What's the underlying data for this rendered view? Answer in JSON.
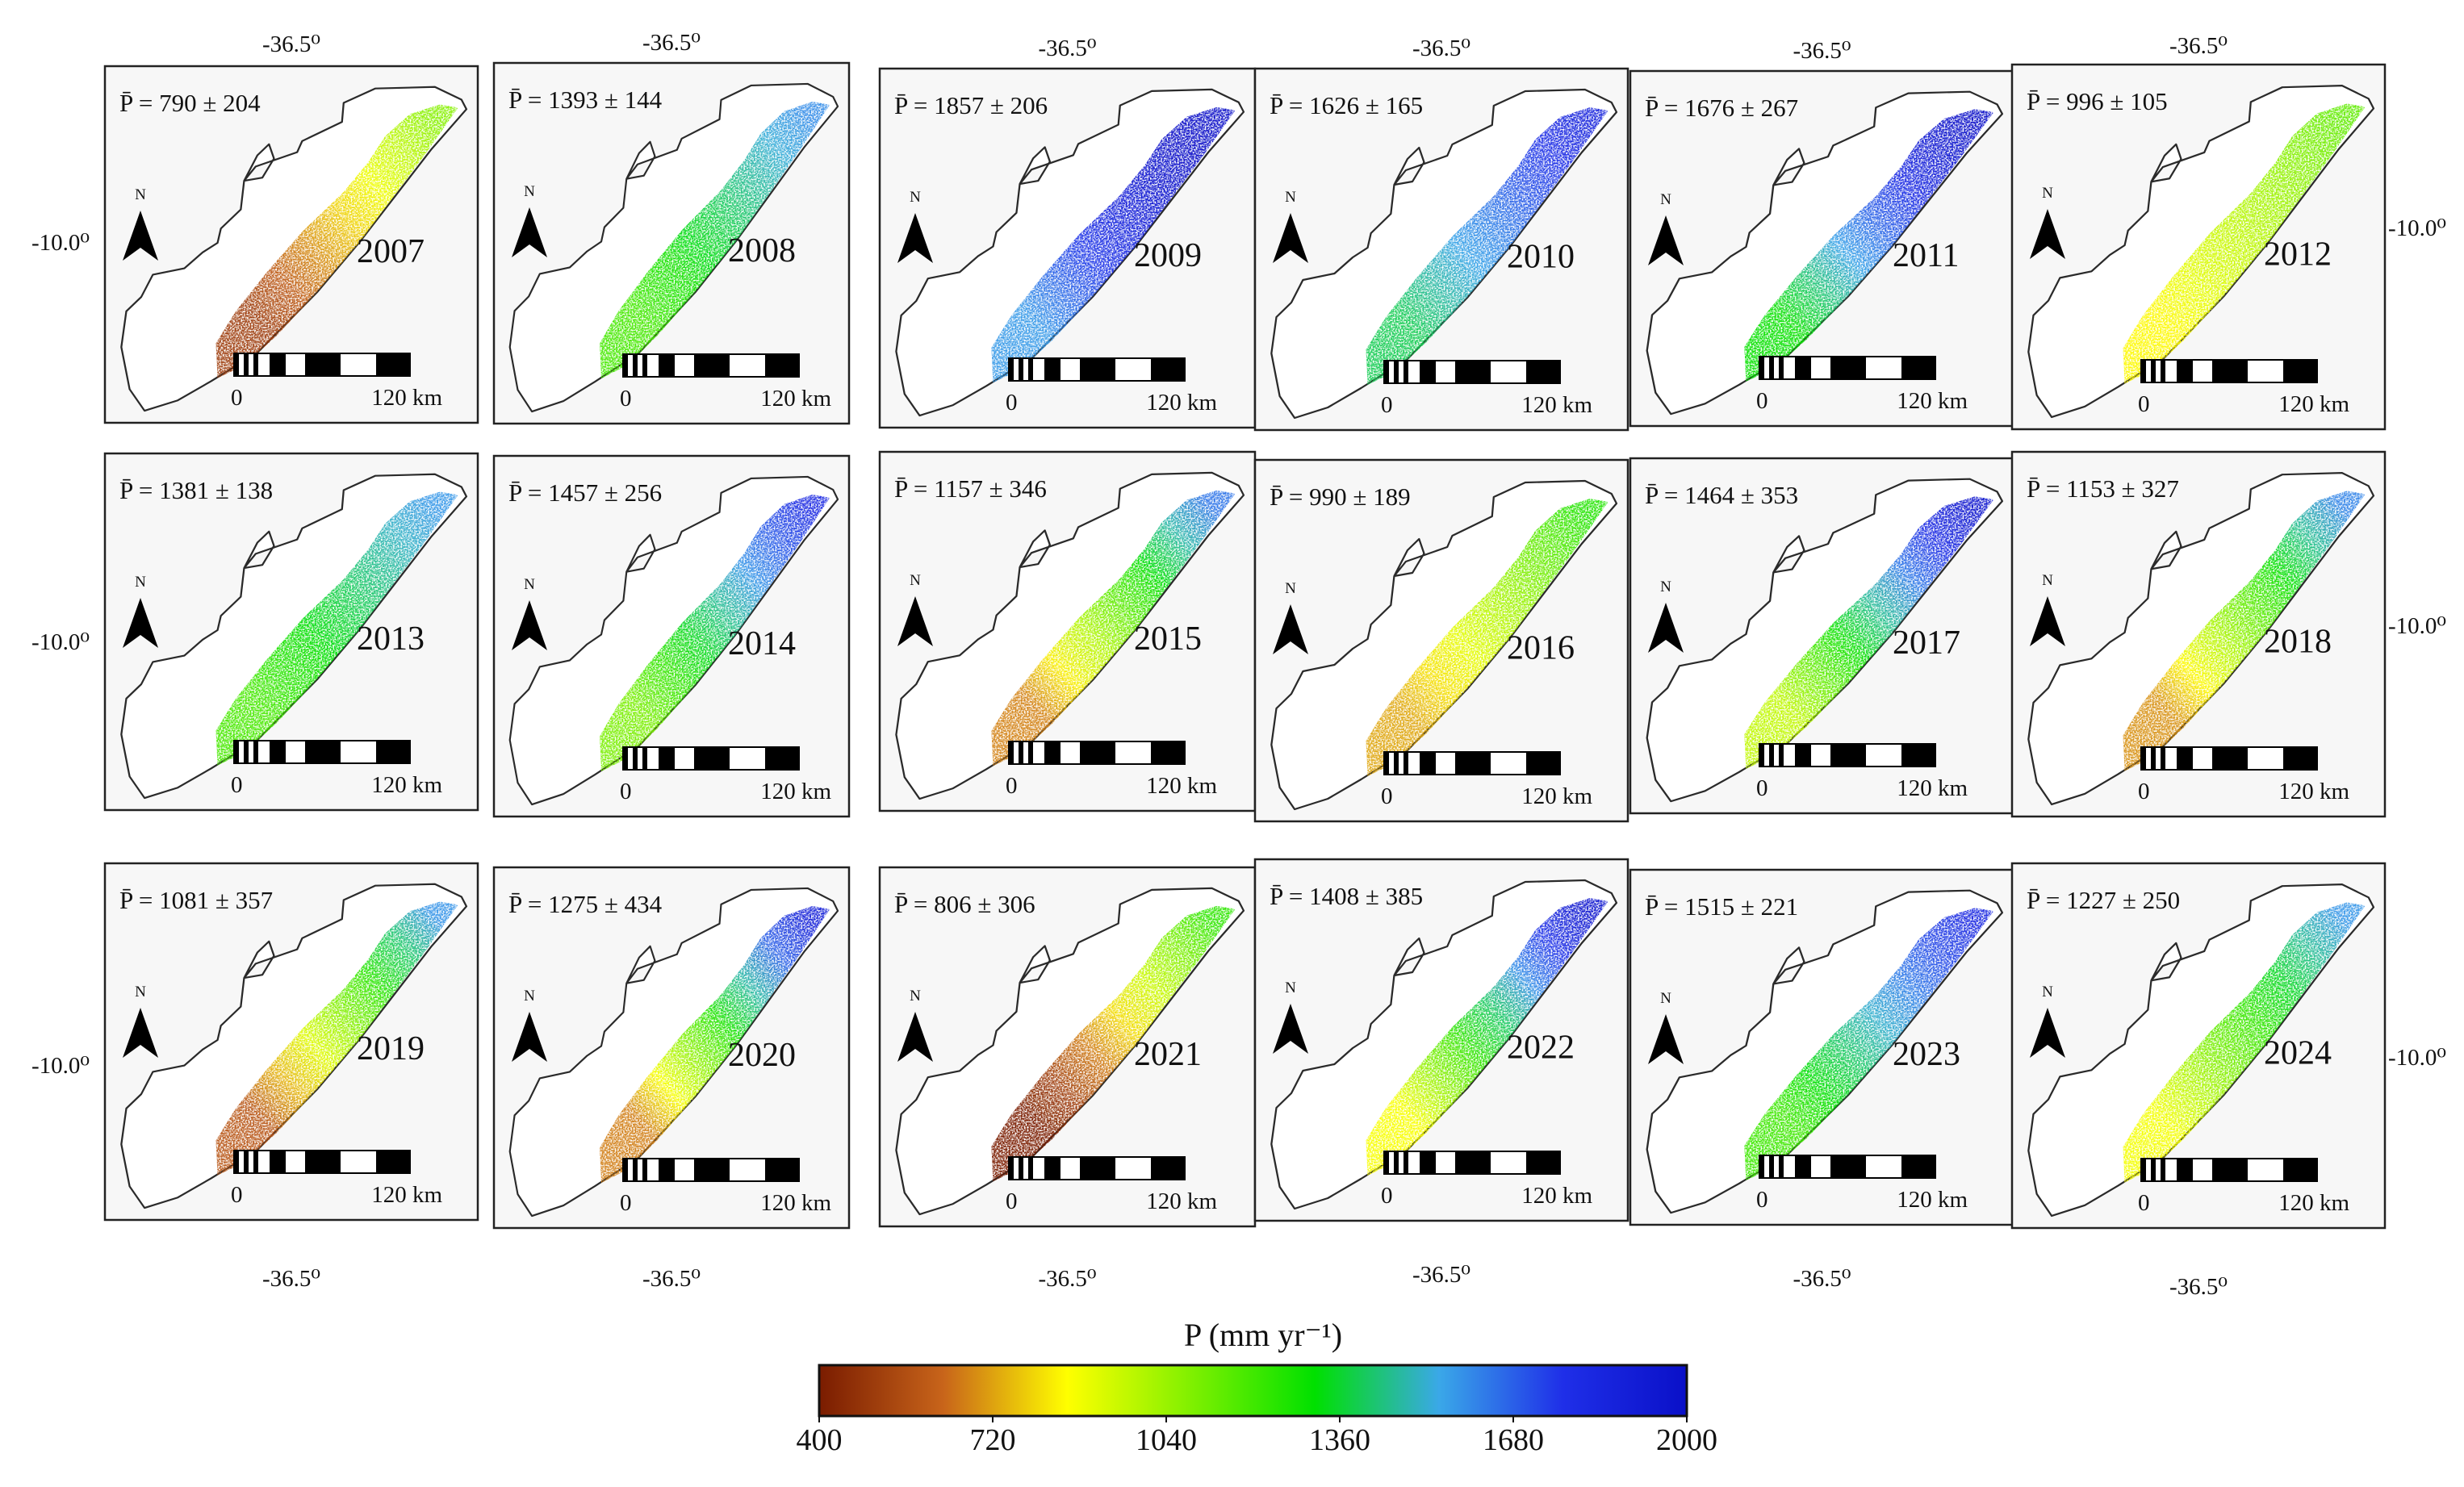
{
  "colorbar": {
    "title": "P (mm yr⁻¹)",
    "min": 400,
    "max": 2000,
    "ticks": [
      "400",
      "720",
      "1040",
      "1360",
      "1680",
      "2000"
    ],
    "gradient_stops": [
      "#7a1c00",
      "#c8641a",
      "#ffff00",
      "#80f000",
      "#00e000",
      "#3aa8e8",
      "#1f2fe8",
      "#0a10c8"
    ]
  },
  "labels": {
    "lon": "-36.5⁰",
    "lat": "-10.0⁰",
    "north": "N",
    "scale_start": "0",
    "scale_end": "120 km"
  },
  "panels": [
    {
      "year": "2007",
      "stat": "P̄ = 790 ± 204",
      "mean": 790,
      "sd": 204
    },
    {
      "year": "2008",
      "stat": "P̄ = 1393 ± 144",
      "mean": 1393,
      "sd": 144
    },
    {
      "year": "2009",
      "stat": "P̄ = 1857 ± 206",
      "mean": 1857,
      "sd": 206
    },
    {
      "year": "2010",
      "stat": "P̄ = 1626 ± 165",
      "mean": 1626,
      "sd": 165
    },
    {
      "year": "2011",
      "stat": "P̄ = 1676 ± 267",
      "mean": 1676,
      "sd": 267
    },
    {
      "year": "2012",
      "stat": "P̄ = 996 ± 105",
      "mean": 996,
      "sd": 105
    },
    {
      "year": "2013",
      "stat": "P̄ = 1381 ± 138",
      "mean": 1381,
      "sd": 138
    },
    {
      "year": "2014",
      "stat": "P̄ = 1457 ± 256",
      "mean": 1457,
      "sd": 256
    },
    {
      "year": "2015",
      "stat": "P̄ = 1157 ± 346",
      "mean": 1157,
      "sd": 346
    },
    {
      "year": "2016",
      "stat": "P̄ = 990 ± 189",
      "mean": 990,
      "sd": 189
    },
    {
      "year": "2017",
      "stat": "P̄ = 1464 ± 353",
      "mean": 1464,
      "sd": 353
    },
    {
      "year": "2018",
      "stat": "P̄ = 1153 ± 327",
      "mean": 1153,
      "sd": 327
    },
    {
      "year": "2019",
      "stat": "P̄ = 1081 ± 357",
      "mean": 1081,
      "sd": 357
    },
    {
      "year": "2020",
      "stat": "P̄ = 1275 ± 434",
      "mean": 1275,
      "sd": 434
    },
    {
      "year": "2021",
      "stat": "P̄ = 806 ± 306",
      "mean": 806,
      "sd": 306
    },
    {
      "year": "2022",
      "stat": "P̄ = 1408 ± 385",
      "mean": 1408,
      "sd": 385
    },
    {
      "year": "2023",
      "stat": "P̄ = 1515 ± 221",
      "mean": 1515,
      "sd": 221
    },
    {
      "year": "2024",
      "stat": "P̄ = 1227 ± 250",
      "mean": 1227,
      "sd": 250
    }
  ]
}
